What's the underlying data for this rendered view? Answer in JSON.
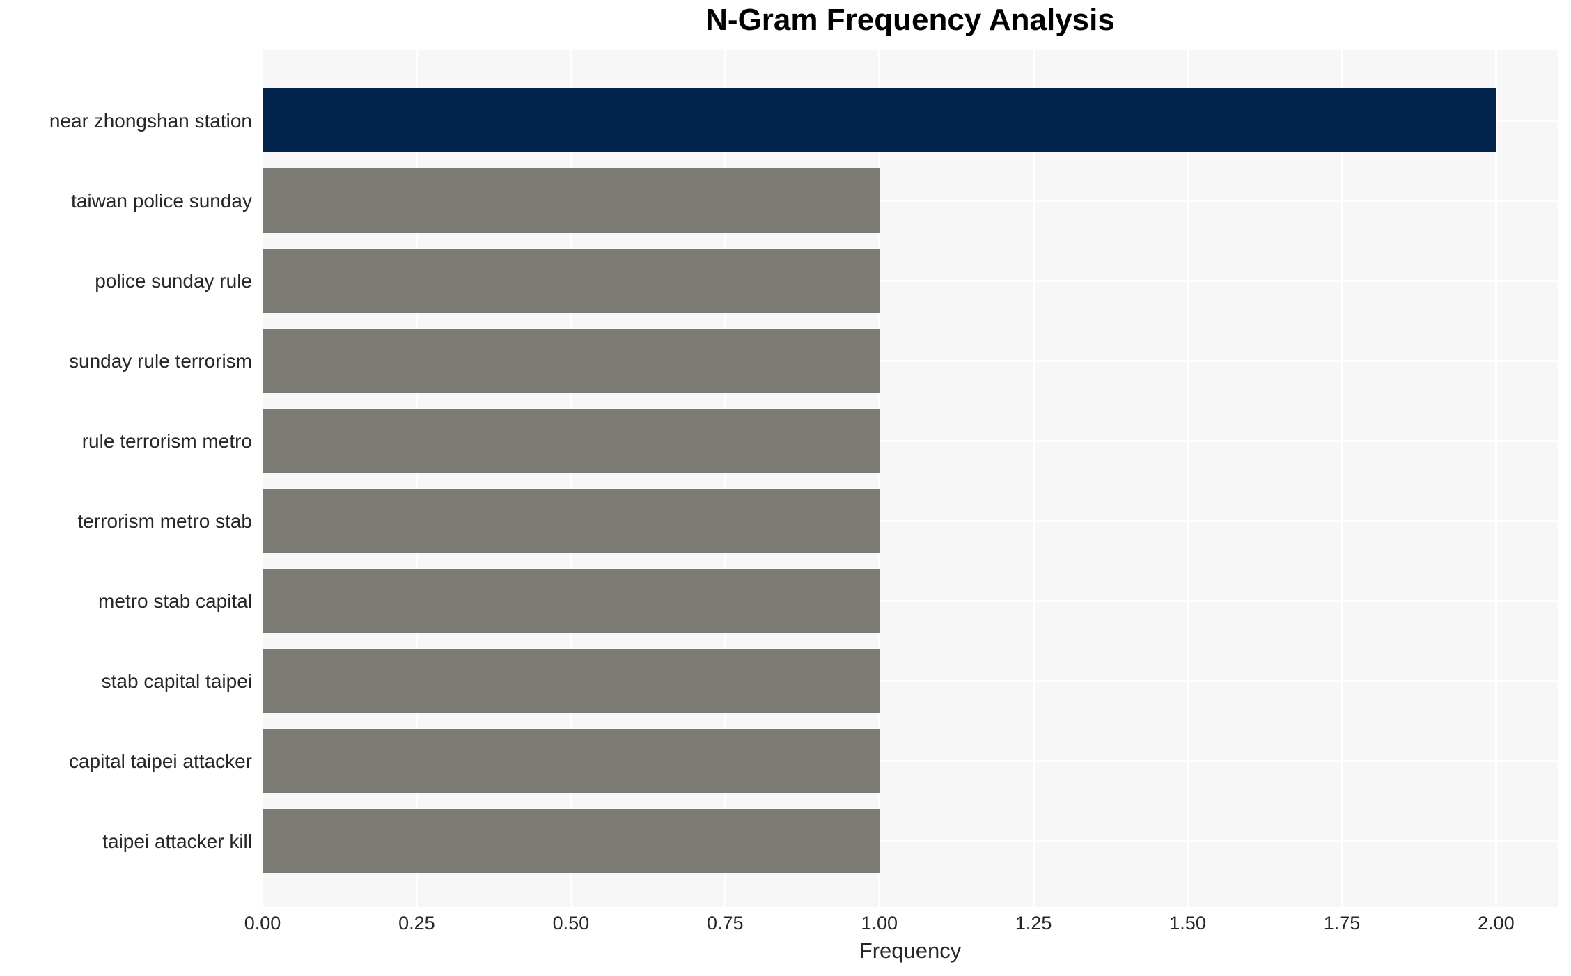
{
  "chart_data": {
    "type": "bar",
    "orientation": "horizontal",
    "title": "N-Gram Frequency Analysis",
    "xlabel": "Frequency",
    "ylabel": "",
    "categories": [
      "near zhongshan station",
      "taiwan police sunday",
      "police sunday rule",
      "sunday rule terrorism",
      "rule terrorism metro",
      "terrorism metro stab",
      "metro stab capital",
      "stab capital taipei",
      "capital taipei attacker",
      "taipei attacker kill"
    ],
    "values": [
      2,
      1,
      1,
      1,
      1,
      1,
      1,
      1,
      1,
      1
    ],
    "bar_colors": [
      "#02234d",
      "#7b7a75",
      "#7b7a75",
      "#7b7a75",
      "#7b7a75",
      "#7b7a75",
      "#7b7a75",
      "#7b7a75",
      "#7b7a75",
      "#7b7a75"
    ],
    "xlim": [
      0,
      2.1
    ],
    "xticks": [
      0,
      0.25,
      0.5,
      0.75,
      1,
      1.25,
      1.5,
      1.75,
      2
    ],
    "xtick_labels": [
      "0.00",
      "0.25",
      "0.50",
      "0.75",
      "1.00",
      "1.25",
      "1.50",
      "1.75",
      "2.00"
    ],
    "grid": true,
    "legend": null,
    "colors": {
      "highlight_bar": "#02234d",
      "default_bar": "#7b7a75",
      "plot_background": "#f7f7f7",
      "gridline": "#ffffff",
      "tick_text": "#262626",
      "title_text": "#000000"
    }
  }
}
